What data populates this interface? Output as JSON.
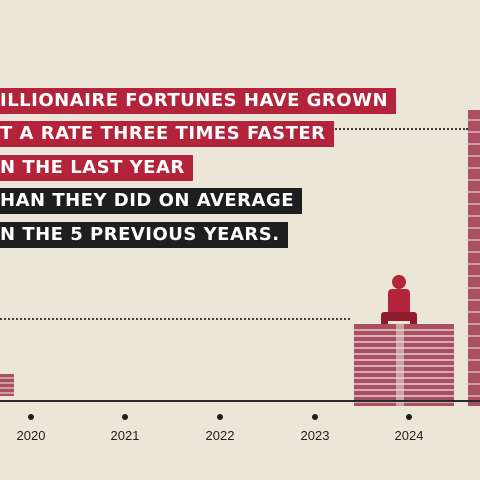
{
  "headline": {
    "lines": [
      "ILLIONAIRE FORTUNES HAVE GROWN",
      "T A RATE THREE TIMES FASTER",
      "N THE LAST YEAR",
      "HAN THEY DID ON AVERAGE",
      "N THE 5 PREVIOUS YEARS."
    ]
  },
  "timeline": {
    "years": [
      "2020",
      "2021",
      "2022",
      "2023",
      "2024"
    ]
  },
  "colors": {
    "background": "#ebe6d8",
    "headline_red": "#b3243a",
    "headline_dark": "#1e1e1e",
    "money": "#a85062"
  }
}
